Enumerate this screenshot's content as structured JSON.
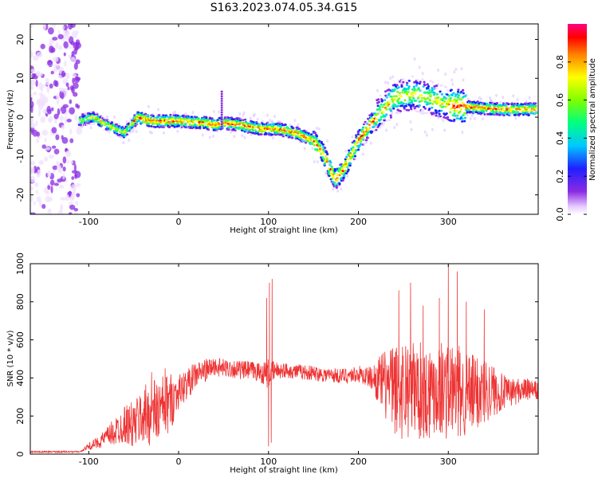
{
  "figure": {
    "title": "S163.2023.074.05.34.G15"
  },
  "chart_data": [
    {
      "type": "heatmap",
      "xlabel": "Height of straight line (km)",
      "ylabel": "Frequency (Hz)",
      "xlim": [
        -165,
        400
      ],
      "ylim": [
        -25,
        24
      ],
      "xticks": [
        -100,
        0,
        100,
        200,
        300
      ],
      "yticks": [
        -20,
        -10,
        0,
        10,
        20
      ],
      "colorbar": {
        "label": "Normalized spectral amplitude",
        "range": [
          0,
          1
        ],
        "ticks": [
          0.0,
          0.2,
          0.4,
          0.6,
          0.8
        ],
        "colormap": "rainbow"
      },
      "ridge": {
        "x": [
          -110,
          -95,
          -80,
          -60,
          -45,
          -30,
          0,
          30,
          40,
          50,
          70,
          90,
          110,
          130,
          150,
          160,
          170,
          175,
          185,
          200,
          220,
          240,
          260,
          280,
          300,
          330,
          360,
          400
        ],
        "y": [
          -1,
          0,
          -2,
          -4,
          0,
          -1,
          -1,
          -1.5,
          -2,
          -1.5,
          -2,
          -3,
          -3,
          -4,
          -6,
          -9,
          -14,
          -16,
          -13,
          -6,
          0,
          5,
          6,
          5,
          3,
          2.5,
          2,
          2
        ]
      }
    },
    {
      "type": "line",
      "xlabel": "Height of straight line (km)",
      "ylabel": "SNR (10 * v/v)",
      "xlim": [
        -165,
        400
      ],
      "ylim": [
        0,
        1000
      ],
      "xticks": [
        -100,
        0,
        100,
        200,
        300
      ],
      "yticks": [
        0,
        200,
        400,
        600,
        800,
        1000
      ],
      "series": [
        {
          "color": "#ee3333",
          "x": [
            -165,
            -130,
            -110,
            -100,
            -90,
            -80,
            -70,
            -60,
            -50,
            -40,
            -30,
            -20,
            -10,
            0,
            10,
            20,
            30,
            40,
            50,
            60,
            70,
            80,
            90,
            100,
            103,
            110,
            120,
            140,
            160,
            180,
            200,
            215,
            225,
            235,
            245,
            255,
            265,
            275,
            285,
            295,
            305,
            315,
            325,
            335,
            345,
            355,
            365,
            375,
            385,
            400
          ],
          "y": [
            10,
            10,
            12,
            40,
            60,
            90,
            120,
            160,
            150,
            200,
            220,
            230,
            270,
            330,
            370,
            420,
            440,
            460,
            450,
            450,
            440,
            440,
            430,
            420,
            430,
            440,
            440,
            430,
            420,
            410,
            420,
            400,
            380,
            350,
            330,
            360,
            340,
            320,
            360,
            340,
            330,
            320,
            310,
            330,
            340,
            330,
            320,
            330,
            340,
            330
          ],
          "noise": [
            0,
            0,
            0,
            20,
            30,
            50,
            80,
            100,
            130,
            150,
            180,
            180,
            160,
            90,
            80,
            70,
            60,
            50,
            50,
            50,
            50,
            50,
            50,
            80,
            60,
            45,
            40,
            40,
            40,
            40,
            45,
            60,
            150,
            220,
            260,
            280,
            260,
            260,
            260,
            260,
            260,
            240,
            220,
            200,
            160,
            120,
            80,
            70,
            60,
            50
          ],
          "spikes": [
            {
              "x": 98,
              "y": 820
            },
            {
              "x": 100,
              "y": 40
            },
            {
              "x": 101,
              "y": 900
            },
            {
              "x": 103,
              "y": 60
            },
            {
              "x": 104,
              "y": 920
            },
            {
              "x": -30,
              "y": 430
            },
            {
              "x": -15,
              "y": 450
            },
            {
              "x": 245,
              "y": 860
            },
            {
              "x": 258,
              "y": 900
            },
            {
              "x": 272,
              "y": 780
            },
            {
              "x": 290,
              "y": 820
            },
            {
              "x": 300,
              "y": 1000
            },
            {
              "x": 310,
              "y": 960
            },
            {
              "x": 320,
              "y": 800
            },
            {
              "x": 340,
              "y": 760
            }
          ]
        }
      ]
    }
  ]
}
